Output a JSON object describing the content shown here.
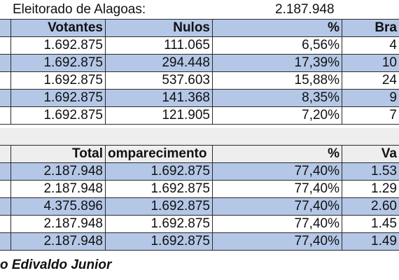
{
  "title_row": {
    "label": "Eleitorado de Alagoas:",
    "value": "2.187.948"
  },
  "table1": {
    "headers": [
      "Votantes",
      "Nulos",
      "%",
      "Bra"
    ],
    "rows": [
      [
        "1.692.875",
        "111.065",
        "6,56%",
        "4"
      ],
      [
        "1.692.875",
        "294.448",
        "17,39%",
        "10"
      ],
      [
        "1.692.875",
        "537.603",
        "15,88%",
        "24"
      ],
      [
        "1.692.875",
        "141.368",
        "8,35%",
        "9"
      ],
      [
        "1.692.875",
        "121.905",
        "7,20%",
        "7"
      ]
    ]
  },
  "table2": {
    "headers": [
      "Total",
      "omparecimento",
      "%",
      "Va"
    ],
    "rows": [
      [
        "2.187.948",
        "1.692.875",
        "77,40%",
        "1.53"
      ],
      [
        "2.187.948",
        "1.692.875",
        "77,40%",
        "1.29"
      ],
      [
        "4.375.896",
        "1.692.875",
        "77,40%",
        "2.60"
      ],
      [
        "2.187.948",
        "1.692.875",
        "77,40%",
        "1.45"
      ],
      [
        "2.187.948",
        "1.692.875",
        "77,40%",
        "1.49"
      ]
    ]
  },
  "footer": {
    "author": "o Edivaldo Junior"
  },
  "colors": {
    "header_row": "#b4c7e7",
    "alt_row": "#b4c7e7",
    "plain_row": "#ffffff",
    "grid_line": "#2b2b2b"
  }
}
